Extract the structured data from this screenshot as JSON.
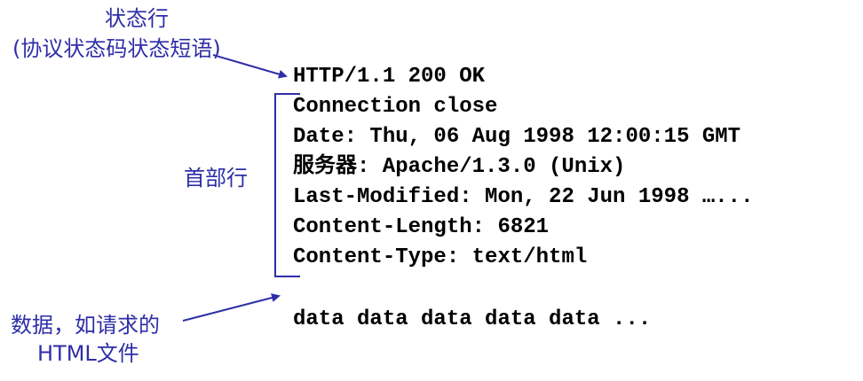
{
  "response": {
    "status_line": "HTTP/1.1 200 OK",
    "header_lines": [
      "Connection close",
      "Date: Thu, 06 Aug 1998 12:00:15 GMT",
      "服务器: Apache/1.3.0 (Unix)",
      "Last-Modified: Mon, 22 Jun 1998 …...",
      "Content-Length: 6821",
      "Content-Type: text/html"
    ],
    "body_line": "data data data data data ..."
  },
  "labels": {
    "status_line_title": "状态行",
    "status_line_subtitle": "(协议状态码状态短语)",
    "header_lines": "首部行",
    "data_line1": "数据，如请求的",
    "data_line2": "HTML文件"
  },
  "colors": {
    "annotation": "#2e2ea8",
    "code": "#000000"
  }
}
